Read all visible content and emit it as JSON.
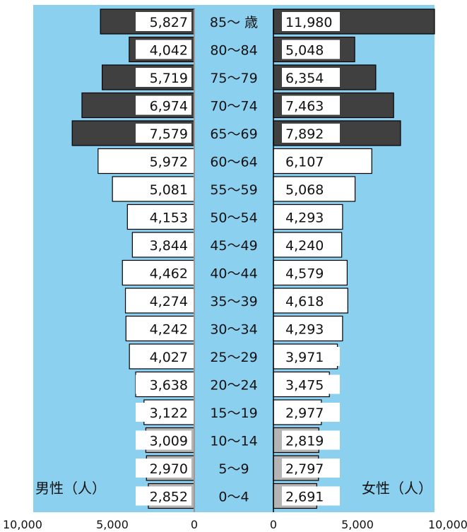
{
  "chart_data": {
    "type": "bar",
    "subtype": "population-pyramid",
    "age_groups": [
      "85～ 歳",
      "80～84",
      "75～79",
      "70～74",
      "65～69",
      "60～64",
      "55～59",
      "50～54",
      "45～49",
      "40～44",
      "35～39",
      "30～34",
      "25～29",
      "20～24",
      "15～19",
      "10～14",
      "5～9",
      "0～4"
    ],
    "series": [
      {
        "name": "男性（人）",
        "side": "left",
        "values": [
          5827,
          4042,
          5719,
          6974,
          7579,
          5972,
          5081,
          4153,
          3844,
          4462,
          4274,
          4242,
          4027,
          3638,
          3122,
          3009,
          2970,
          2852
        ],
        "value_labels": [
          "5,827",
          "4,042",
          "5,719",
          "6,974",
          "7,579",
          "5,972",
          "5,081",
          "4,153",
          "3,844",
          "4,462",
          "4,274",
          "4,242",
          "4,027",
          "3,638",
          "3,122",
          "3,009",
          "2,970",
          "2,852"
        ]
      },
      {
        "name": "女性（人）",
        "side": "right",
        "values": [
          11980,
          5048,
          6354,
          7463,
          7892,
          6107,
          5068,
          4293,
          4240,
          4579,
          4618,
          4293,
          3971,
          3475,
          2977,
          2819,
          2797,
          2691
        ],
        "value_labels": [
          "11,980",
          "5,048",
          "6,354",
          "7,463",
          "7,892",
          "6,107",
          "5,068",
          "4,293",
          "4,240",
          "4,579",
          "4,618",
          "4,293",
          "3,971",
          "3,475",
          "2,977",
          "2,819",
          "2,797",
          "2,691"
        ]
      }
    ],
    "x_ticks_left": [
      "10,000",
      "5,000",
      "0"
    ],
    "x_ticks_right": [
      "0",
      "5,000",
      "10,000"
    ],
    "xlim": [
      0,
      10000
    ],
    "elderly_groups_dark": 5,
    "colors": {
      "background": "#8cd0f0",
      "dark_bar": "#404040",
      "light_bar": "#ffffff",
      "gray_bar": "#b4b4b4",
      "value_box": "#ffffff",
      "text": "#111111"
    }
  }
}
